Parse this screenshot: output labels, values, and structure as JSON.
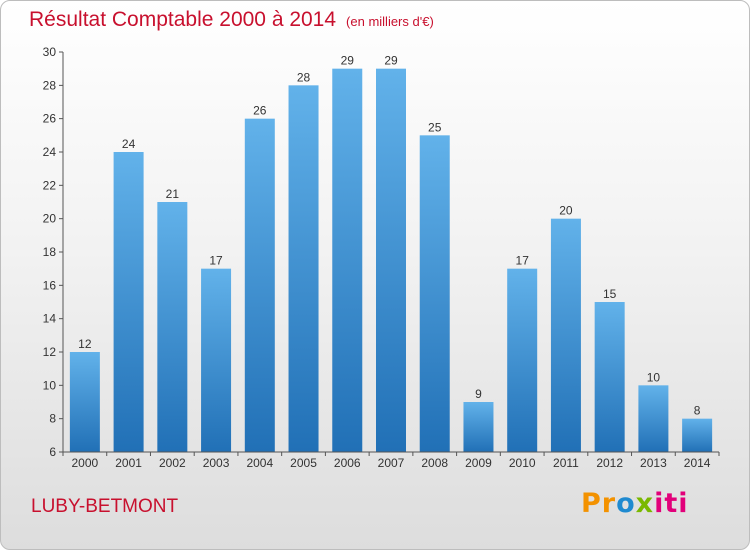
{
  "chart_data": {
    "type": "bar",
    "title": "Résultat Comptable 2000 à 2014",
    "unit_label": "(en milliers d'€)",
    "categories": [
      "2000",
      "2001",
      "2002",
      "2003",
      "2004",
      "2005",
      "2006",
      "2007",
      "2008",
      "2009",
      "2010",
      "2011",
      "2012",
      "2013",
      "2014"
    ],
    "values": [
      12,
      24,
      21,
      17,
      26,
      28,
      29,
      29,
      25,
      9,
      17,
      20,
      15,
      10,
      8
    ],
    "ylim": [
      6,
      30
    ],
    "yticks": [
      6,
      8,
      10,
      12,
      14,
      16,
      18,
      20,
      22,
      24,
      26,
      28,
      30
    ],
    "grid": false,
    "bar_color": "#3a8fd6",
    "xlabel": "",
    "ylabel": ""
  },
  "footer": {
    "commune": "LUBY-BETMONT",
    "logo": {
      "p1": "Pr",
      "p2": "o",
      "p3": "x",
      "p4": "iti"
    }
  },
  "colors": {
    "accent": "#c8102e",
    "bar": "#3a8fd6"
  }
}
